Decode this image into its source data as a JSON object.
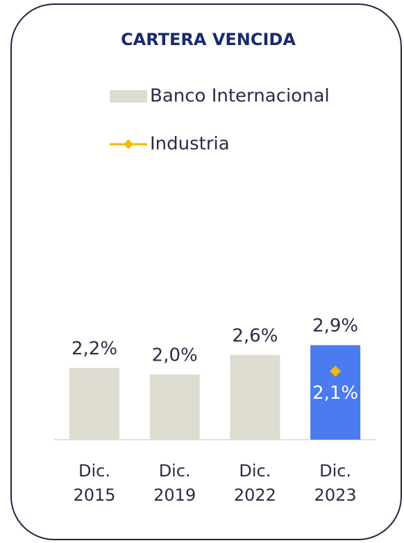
{
  "chart_data": {
    "type": "bar",
    "title": "CARTERA VENCIDA",
    "categories": [
      "Dic. 2015",
      "Dic. 2019",
      "Dic. 2022",
      "Dic. 2023"
    ],
    "series": [
      {
        "name": "Banco Internacional",
        "type": "bar",
        "color": "#dedcd0",
        "colors": [
          "#dedcd0",
          "#dedcd0",
          "#dedcd0",
          "#4a7cf0"
        ],
        "values": [
          2.2,
          2.0,
          2.6,
          2.9
        ],
        "value_labels": [
          "2,2%",
          "2,0%",
          "2,6%",
          "2,9%"
        ]
      },
      {
        "name": "Industria",
        "type": "line",
        "color": "#f5b800",
        "values": [
          null,
          null,
          null,
          2.1
        ],
        "value_labels": [
          null,
          null,
          null,
          "2,1%"
        ]
      }
    ],
    "legend": "top"
  }
}
